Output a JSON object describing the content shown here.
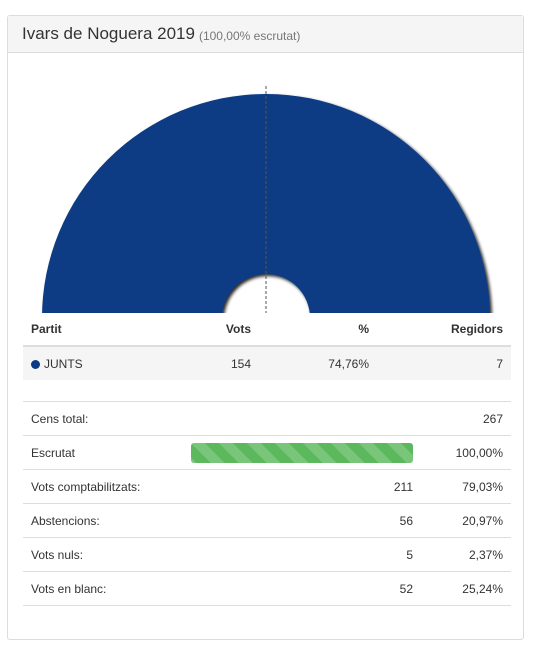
{
  "header": {
    "title": "Ivars de Noguera 2019",
    "subtitle": "(100,00% escrutat)"
  },
  "colors": {
    "junts": "#0c3a84",
    "progress": "#5cb85c"
  },
  "chart_data": {
    "type": "pie",
    "variant": "semicircle-parliament",
    "total_seats": 7,
    "series": [
      {
        "name": "JUNTS",
        "value": 7,
        "color": "#0c3a84"
      }
    ]
  },
  "results_table": {
    "headers": {
      "party": "Partit",
      "votes": "Vots",
      "percent": "%",
      "seats": "Regidors"
    },
    "rows": [
      {
        "party": "JUNTS",
        "votes": "154",
        "percent": "74,76%",
        "seats": "7",
        "color": "#0c3a84"
      }
    ]
  },
  "summary": {
    "cens_label": "Cens total:",
    "cens_value": "267",
    "escrutat_label": "Escrutat",
    "escrutat_value": "100,00%",
    "escrutat_fraction": 1.0,
    "rows": [
      {
        "label": "Vots comptabilitzats:",
        "count": "211",
        "percent": "79,03%"
      },
      {
        "label": "Abstencions:",
        "count": "56",
        "percent": "20,97%"
      },
      {
        "label": "Vots nuls:",
        "count": "5",
        "percent": "2,37%"
      },
      {
        "label": "Vots en blanc:",
        "count": "52",
        "percent": "25,24%"
      }
    ]
  }
}
